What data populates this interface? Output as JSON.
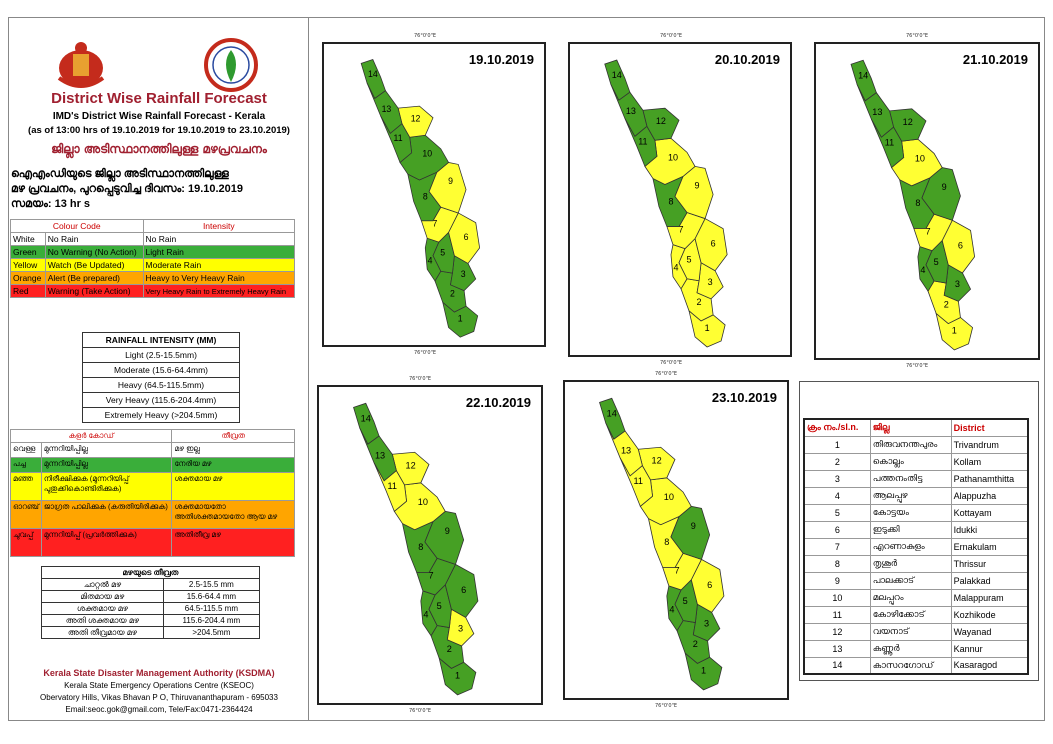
{
  "header": {
    "title": "District Wise Rainfall Forecast",
    "subtitle": "IMD's District Wise Rainfall Forecast - Kerala",
    "period": "(as of 13:00 hrs of 19.10.2019  for 19.10.2019  to 23.10.2019)",
    "title_ml": "ജില്ലാ അടിസ്ഥാനത്തിലുള്ള മഴപ്രവചനം",
    "issue_line1": "ഐഎംഡിയുടെ ജില്ലാ അടിസ്ഥാനത്തിലുള്ള",
    "issue_line2": "മഴ പ്രവചനം, പുറപ്പെടുവിച്ച ദിവസം: 19.10.2019",
    "issue_line3": "സമയം: 13 hr s"
  },
  "colour_code": {
    "headers": [
      "Colour Code",
      "Intensity"
    ],
    "rows": [
      {
        "colour": "White",
        "meaning": "No Rain",
        "intensity": "No Rain",
        "bg": "#ffffff"
      },
      {
        "colour": "Green",
        "meaning": "No Warning (No Action)",
        "intensity": "Light Rain",
        "bg": "#3aae3a"
      },
      {
        "colour": "Yellow",
        "meaning": "Watch (Be Updated)",
        "intensity": "Moderate Rain",
        "bg": "#ffff00"
      },
      {
        "colour": "Orange",
        "meaning": "Alert (Be prepared)",
        "intensity": "Heavy to Very Heavy Rain",
        "bg": "#ffa500"
      },
      {
        "colour": "Red",
        "meaning": "Warning (Take Action)",
        "intensity": "Very Heavy Rain to Extremely Heavy Rain",
        "bg": "#ff2020"
      }
    ]
  },
  "intensity": {
    "header": "RAINFALL INTENSITY (MM)",
    "rows": [
      "Light (2.5-15.5mm)",
      "Moderate (15.6-64.4mm)",
      "Heavy (64.5-115.5mm)",
      "Very Heavy (115.6-204.4mm)",
      "Extremely Heavy (>204.5mm)"
    ]
  },
  "colour_code_ml": {
    "headers": [
      "കളർ കോഡ്",
      "തീവ്രത"
    ],
    "rows": [
      {
        "colour": "വെള്ള",
        "meaning": "മുന്നറിയിപ്പില്ല",
        "intensity": "മഴ ഇല്ല",
        "bg": "#ffffff"
      },
      {
        "colour": "പച്ച",
        "meaning": "മുന്നറിയിപ്പില്ല",
        "intensity": "നേരിയ മഴ",
        "bg": "#3aae3a"
      },
      {
        "colour": "മഞ്ഞ",
        "meaning": "നിരീക്ഷിക്കുക (മുന്നറിയിപ്പ് പുതുക്കികൊണ്ടിരിക്കുക)",
        "intensity": "ശക്തമായ മഴ",
        "bg": "#ffff00"
      },
      {
        "colour": "ഓറഞ്ച്",
        "meaning": "ജാഗ്രത പാലിക്കുക (കരുതിയിരിക്കുക)",
        "intensity": "ശക്തമായതോ അതിശക്തമായതോ ആയ മഴ",
        "bg": "#ffa500"
      },
      {
        "colour": "ചുവപ്പ്",
        "meaning": "മുന്നറിയിപ്പ് (പ്രവർത്തിക്കുക)",
        "intensity": "അതിതീവ്ര മഴ",
        "bg": "#ff2020"
      }
    ]
  },
  "intensity_ml": {
    "header": "മഴയുടെ തീവ്രത",
    "rows": [
      {
        "label": "ചാറ്റൽ മഴ",
        "range": "2.5-15.5 mm"
      },
      {
        "label": "മിതമായ മഴ",
        "range": "15.6-64.4 mm"
      },
      {
        "label": "ശക്തമായ മഴ",
        "range": "64.5-115.5 mm"
      },
      {
        "label": "അതി ശക്തമായ മഴ",
        "range": "115.6-204.4 mm"
      },
      {
        "label": "അതി തീവ്രമായ മഴ",
        "range": ">204.5mm"
      }
    ]
  },
  "footer": {
    "org": "Kerala State Disaster Management Authority (KSDMA)",
    "centre": "Kerala State Emergency Operations Centre (KSEOC)",
    "address": "Obervatory Hills, Vikas Bhavan P O, Thiruvananthapuram - 695033",
    "contact": "Email:seoc.gok@gmail.com, Tele/Fax:0471-2364424"
  },
  "coord_labels": {
    "lon": "76°0'0\"E",
    "lat_n1": "12°0'0\"N",
    "lat_n2": "10°0'0\"N",
    "lat_n3": "8°0'0\"N"
  },
  "forecasts": [
    {
      "date": "19.10.2019",
      "colours": {
        "1": "green",
        "2": "green",
        "3": "green",
        "4": "green",
        "5": "green",
        "6": "yellow",
        "7": "yellow",
        "8": "green",
        "9": "yellow",
        "10": "green",
        "11": "green",
        "12": "yellow",
        "13": "green",
        "14": "green"
      }
    },
    {
      "date": "20.10.2019",
      "colours": {
        "1": "yellow",
        "2": "yellow",
        "3": "yellow",
        "4": "yellow",
        "5": "yellow",
        "6": "yellow",
        "7": "yellow",
        "8": "green",
        "9": "yellow",
        "10": "yellow",
        "11": "green",
        "12": "green",
        "13": "green",
        "14": "green"
      }
    },
    {
      "date": "21.10.2019",
      "colours": {
        "1": "yellow",
        "2": "yellow",
        "3": "green",
        "4": "green",
        "5": "green",
        "6": "yellow",
        "7": "yellow",
        "8": "green",
        "9": "green",
        "10": "yellow",
        "11": "green",
        "12": "green",
        "13": "green",
        "14": "green"
      }
    },
    {
      "date": "22.10.2019",
      "colours": {
        "1": "green",
        "2": "green",
        "3": "yellow",
        "4": "green",
        "5": "green",
        "6": "green",
        "7": "green",
        "8": "green",
        "9": "green",
        "10": "yellow",
        "11": "yellow",
        "12": "yellow",
        "13": "green",
        "14": "green"
      }
    },
    {
      "date": "23.10.2019",
      "colours": {
        "1": "green",
        "2": "green",
        "3": "green",
        "4": "green",
        "5": "green",
        "6": "yellow",
        "7": "yellow",
        "8": "yellow",
        "9": "green",
        "10": "yellow",
        "11": "yellow",
        "12": "yellow",
        "13": "yellow",
        "14": "green"
      }
    }
  ],
  "palette": {
    "green": "#46a024",
    "yellow": "#ffff33",
    "stroke": "#333333"
  },
  "districts": {
    "headers": [
      "ക്രം നം./sl.n.",
      "ജില്ല",
      "District"
    ],
    "rows": [
      [
        "1",
        "തിരുവനന്തപുരം",
        "Trivandrum"
      ],
      [
        "2",
        "കൊല്ലം",
        "Kollam"
      ],
      [
        "3",
        "പത്തനംതിട്ട",
        "Pathanamthitta"
      ],
      [
        "4",
        "ആലപ്പുഴ",
        "Alappuzha"
      ],
      [
        "5",
        "കോട്ടയം",
        "Kottayam"
      ],
      [
        "6",
        "ഇടുക്കി",
        "Idukki"
      ],
      [
        "7",
        "എറണാകുളം",
        "Ernakulam"
      ],
      [
        "8",
        "തൃശൂർ",
        "Thrissur"
      ],
      [
        "9",
        "പാലക്കാട്",
        "Palakkad"
      ],
      [
        "10",
        "മലപ്പുറം",
        "Malappuram"
      ],
      [
        "11",
        "കോഴിക്കോട്",
        "Kozhikode"
      ],
      [
        "12",
        "വയനാട്",
        "Wayanad"
      ],
      [
        "13",
        "കണ്ണൂർ",
        "Kannur"
      ],
      [
        "14",
        "കാസറഗോഡ്",
        "Kasaragod"
      ]
    ]
  }
}
